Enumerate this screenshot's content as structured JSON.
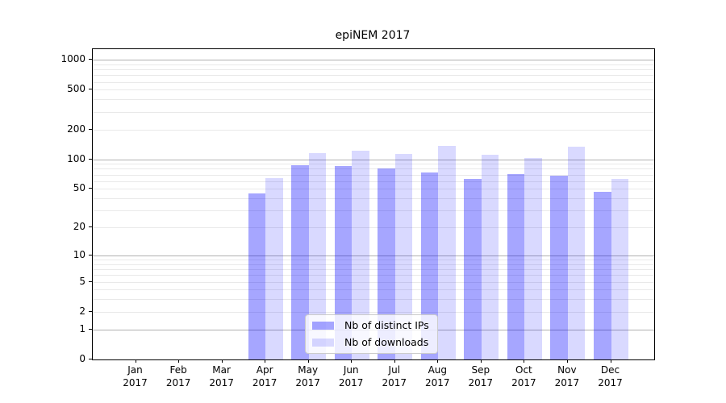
{
  "chart_data": {
    "type": "bar",
    "title": "epiNEM 2017",
    "categories": [
      "Jan",
      "Feb",
      "Mar",
      "Apr",
      "May",
      "Jun",
      "Jul",
      "Aug",
      "Sep",
      "Oct",
      "Nov",
      "Dec"
    ],
    "x_tick_second_line": "2017",
    "series": [
      {
        "name": "Nb of distinct IPs",
        "color": "rgba(0,0,255,0.35)",
        "values": [
          0,
          0,
          0,
          45,
          87,
          86,
          80,
          73,
          63,
          71,
          68,
          47
        ]
      },
      {
        "name": "Nb of downloads",
        "color": "rgba(0,0,255,0.15)",
        "values": [
          0,
          0,
          0,
          64,
          115,
          121,
          113,
          137,
          112,
          103,
          133,
          63
        ]
      }
    ],
    "xlabel": "",
    "ylabel": "",
    "y_scale": "log1p",
    "ylim": [
      0,
      1275
    ],
    "y_tick_labels": [
      "0",
      "1",
      "2",
      "5",
      "10",
      "20",
      "50",
      "100",
      "200",
      "500",
      "1000"
    ],
    "y_tick_values": [
      0,
      1,
      2,
      5,
      10,
      20,
      50,
      100,
      200,
      500,
      1000
    ],
    "y_major_gridlines": [
      1,
      10,
      100,
      1000
    ],
    "y_minor_gridlines": [
      2,
      3,
      4,
      5,
      6,
      7,
      8,
      9,
      20,
      30,
      40,
      50,
      60,
      70,
      80,
      90,
      200,
      300,
      400,
      500,
      600,
      700,
      800,
      900
    ],
    "grid": true,
    "legend_position": "lower center"
  },
  "colors": {
    "bar_ips": "rgba(0,0,255,0.35)",
    "bar_downloads": "rgba(0,0,255,0.15)",
    "major_grid": "#b0b0b0",
    "minor_grid": "#e9e9e9",
    "frame": "#000000",
    "text": "#000000",
    "legend_border": "#cccccc",
    "legend_bg": "rgba(255,255,255,0.8)"
  }
}
